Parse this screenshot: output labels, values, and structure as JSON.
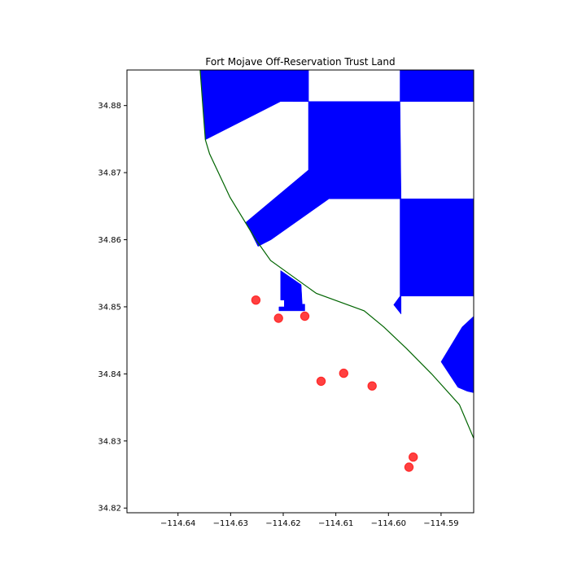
{
  "title": "Fort Mojave Off-Reservation Trust Land",
  "chart_data": {
    "type": "map",
    "title": "Fort Mojave Off-Reservation Trust Land",
    "xlabel": "",
    "ylabel": "",
    "xlim": [
      -114.6497,
      -114.5838
    ],
    "ylim": [
      34.8193,
      34.8853
    ],
    "grid": false,
    "xticks": [
      -114.64,
      -114.63,
      -114.62,
      -114.61,
      -114.6,
      -114.59
    ],
    "xtick_labels": [
      "−114.64",
      "−114.63",
      "−114.62",
      "−114.61",
      "−114.60",
      "−114.59"
    ],
    "yticks": [
      34.82,
      34.83,
      34.84,
      34.85,
      34.86,
      34.87,
      34.88
    ],
    "ytick_labels": [
      "34.82",
      "34.83",
      "34.84",
      "34.85",
      "34.86",
      "34.87",
      "34.88"
    ],
    "colors": {
      "trust_land": "#0000ff",
      "boundary_line": "#006400",
      "points": "#ff0000"
    },
    "trust_land_polygons": [
      [
        [
          -114.6358,
          34.8853
        ],
        [
          -114.6181,
          34.8853
        ],
        [
          -114.6181,
          34.8806
        ],
        [
          -114.6205,
          34.8806
        ],
        [
          -114.6348,
          34.8749
        ]
      ],
      [
        [
          -114.6181,
          34.8806
        ],
        [
          -114.6181,
          34.8853
        ],
        [
          -114.6181,
          34.8806
        ],
        [
          -114.6152,
          34.8806
        ],
        [
          -114.6152,
          34.8853
        ],
        [
          -114.6181,
          34.8853
        ]
      ],
      [
        [
          -114.6152,
          34.8853
        ],
        [
          -114.6152,
          34.8806
        ],
        [
          -114.6181,
          34.8806
        ]
      ],
      [
        [
          -114.6152,
          34.8806
        ],
        [
          -114.5978,
          34.8806
        ],
        [
          -114.5976,
          34.8661
        ],
        [
          -114.6113,
          34.8661
        ],
        [
          -114.6223,
          34.86
        ],
        [
          -114.6248,
          34.859
        ],
        [
          -114.6271,
          34.8626
        ],
        [
          -114.6152,
          34.8704
        ]
      ],
      [
        [
          -114.5978,
          34.8853
        ],
        [
          -114.5838,
          34.8853
        ],
        [
          -114.5838,
          34.8806
        ],
        [
          -114.5978,
          34.8806
        ]
      ],
      [
        [
          -114.5978,
          34.8661
        ],
        [
          -114.5838,
          34.8661
        ],
        [
          -114.5838,
          34.8516
        ],
        [
          -114.5976,
          34.8516
        ],
        [
          -114.5976,
          34.8489
        ],
        [
          -114.599,
          34.8503
        ],
        [
          -114.5978,
          34.8516
        ]
      ],
      [
        [
          -114.6205,
          34.8554
        ],
        [
          -114.6166,
          34.8533
        ],
        [
          -114.6164,
          34.8504
        ],
        [
          -114.6159,
          34.8504
        ],
        [
          -114.6159,
          34.8494
        ],
        [
          -114.6208,
          34.8494
        ],
        [
          -114.6208,
          34.85
        ],
        [
          -114.6198,
          34.85
        ],
        [
          -114.6198,
          34.851
        ],
        [
          -114.6205,
          34.851
        ]
      ],
      [
        [
          -114.5838,
          34.8486
        ],
        [
          -114.586,
          34.847
        ],
        [
          -114.59,
          34.8418
        ],
        [
          -114.5868,
          34.838
        ],
        [
          -114.585,
          34.8374
        ],
        [
          -114.5838,
          34.8372
        ]
      ]
    ],
    "boundary_line": [
      [
        -114.6358,
        34.8853
      ],
      [
        -114.6348,
        34.8749
      ],
      [
        -114.634,
        34.8728
      ],
      [
        -114.6301,
        34.8663
      ],
      [
        -114.6252,
        34.86
      ],
      [
        -114.6224,
        34.8569
      ],
      [
        -114.6137,
        34.852
      ],
      [
        -114.6046,
        34.8494
      ],
      [
        -114.6009,
        34.847
      ],
      [
        -114.5966,
        34.8438
      ],
      [
        -114.5918,
        34.84
      ],
      [
        -114.5865,
        34.8354
      ],
      [
        -114.5838,
        34.8304
      ]
    ],
    "points": [
      {
        "x": -114.6252,
        "y": 34.851
      },
      {
        "x": -114.6209,
        "y": 34.8483
      },
      {
        "x": -114.6159,
        "y": 34.8486
      },
      {
        "x": -114.6128,
        "y": 34.8389
      },
      {
        "x": -114.6085,
        "y": 34.8401
      },
      {
        "x": -114.6031,
        "y": 34.8382
      },
      {
        "x": -114.5953,
        "y": 34.8276
      },
      {
        "x": -114.5961,
        "y": 34.8261
      }
    ]
  }
}
